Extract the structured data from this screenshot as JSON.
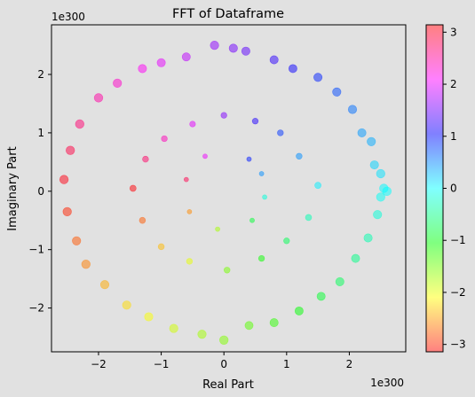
{
  "chart_data": {
    "type": "scatter",
    "title": "FFT of Dataframe",
    "xlabel": "Real Part",
    "ylabel": "Imaginary Part",
    "x_offset_label": "1e300",
    "y_offset_label": "1e300",
    "xlim": [
      -2.75,
      2.9
    ],
    "ylim": [
      -2.75,
      2.85
    ],
    "x_ticks": [
      -2,
      -1,
      0,
      1,
      2
    ],
    "y_ticks": [
      -2,
      -1,
      0,
      1,
      2
    ],
    "x_tick_labels": [
      "−2",
      "−1",
      "0",
      "1",
      "2"
    ],
    "y_tick_labels": [
      "−2",
      "−1",
      "0",
      "1",
      "2"
    ],
    "scale_note": "values in units of 1e300",
    "color_mapping": "phase (angle) of complex value, hsv colormap",
    "colorbar": {
      "range": [
        -3.14159,
        3.14159
      ],
      "ticks": [
        -3,
        -2,
        -1,
        0,
        1,
        2,
        3
      ],
      "tick_labels": [
        "−3",
        "−2",
        "−1",
        "0",
        "1",
        "2",
        "3"
      ],
      "colormap": "hsv"
    },
    "marker_alpha": 0.5,
    "points": [
      {
        "x": 2.55,
        "y": 0.05
      },
      {
        "x": 2.6,
        "y": 0.0
      },
      {
        "x": 2.5,
        "y": -0.1
      },
      {
        "x": 2.4,
        "y": 0.45
      },
      {
        "x": 2.35,
        "y": 0.85
      },
      {
        "x": 2.2,
        "y": 1.0
      },
      {
        "x": 2.05,
        "y": 1.4
      },
      {
        "x": 1.8,
        "y": 1.7
      },
      {
        "x": 1.5,
        "y": 1.95
      },
      {
        "x": 1.1,
        "y": 2.1
      },
      {
        "x": 0.8,
        "y": 2.25
      },
      {
        "x": 0.35,
        "y": 2.4
      },
      {
        "x": 0.15,
        "y": 2.45
      },
      {
        "x": -0.15,
        "y": 2.5
      },
      {
        "x": -0.6,
        "y": 2.3
      },
      {
        "x": -1.0,
        "y": 2.2
      },
      {
        "x": -1.3,
        "y": 2.1
      },
      {
        "x": -1.7,
        "y": 1.85
      },
      {
        "x": -2.0,
        "y": 1.6
      },
      {
        "x": -2.3,
        "y": 1.15
      },
      {
        "x": -2.45,
        "y": 0.7
      },
      {
        "x": -2.55,
        "y": 0.2
      },
      {
        "x": -2.5,
        "y": -0.35
      },
      {
        "x": -2.35,
        "y": -0.85
      },
      {
        "x": -2.2,
        "y": -1.25
      },
      {
        "x": -1.9,
        "y": -1.6
      },
      {
        "x": -1.55,
        "y": -1.95
      },
      {
        "x": -1.2,
        "y": -2.15
      },
      {
        "x": -0.8,
        "y": -2.35
      },
      {
        "x": -0.35,
        "y": -2.45
      },
      {
        "x": 0.0,
        "y": -2.55
      },
      {
        "x": 0.4,
        "y": -2.3
      },
      {
        "x": 0.8,
        "y": -2.25
      },
      {
        "x": 1.2,
        "y": -2.05
      },
      {
        "x": 1.55,
        "y": -1.8
      },
      {
        "x": 1.85,
        "y": -1.55
      },
      {
        "x": 2.1,
        "y": -1.15
      },
      {
        "x": 2.3,
        "y": -0.8
      },
      {
        "x": 2.45,
        "y": -0.4
      },
      {
        "x": 2.5,
        "y": 0.3
      },
      {
        "x": 1.5,
        "y": 0.1
      },
      {
        "x": 1.2,
        "y": 0.6
      },
      {
        "x": 0.9,
        "y": 1.0
      },
      {
        "x": 0.5,
        "y": 1.2
      },
      {
        "x": 0.0,
        "y": 1.3
      },
      {
        "x": -0.5,
        "y": 1.15
      },
      {
        "x": -0.95,
        "y": 0.9
      },
      {
        "x": -1.25,
        "y": 0.55
      },
      {
        "x": -1.45,
        "y": 0.05
      },
      {
        "x": -1.3,
        "y": -0.5
      },
      {
        "x": -1.0,
        "y": -0.95
      },
      {
        "x": -0.55,
        "y": -1.2
      },
      {
        "x": 0.05,
        "y": -1.35
      },
      {
        "x": 0.6,
        "y": -1.15
      },
      {
        "x": 1.0,
        "y": -0.85
      },
      {
        "x": 1.35,
        "y": -0.45
      },
      {
        "x": 0.6,
        "y": 0.3
      },
      {
        "x": 0.4,
        "y": 0.55
      },
      {
        "x": -0.3,
        "y": 0.6
      },
      {
        "x": -0.6,
        "y": 0.2
      },
      {
        "x": -0.55,
        "y": -0.35
      },
      {
        "x": -0.1,
        "y": -0.65
      },
      {
        "x": 0.45,
        "y": -0.5
      },
      {
        "x": 0.65,
        "y": -0.1
      }
    ]
  }
}
